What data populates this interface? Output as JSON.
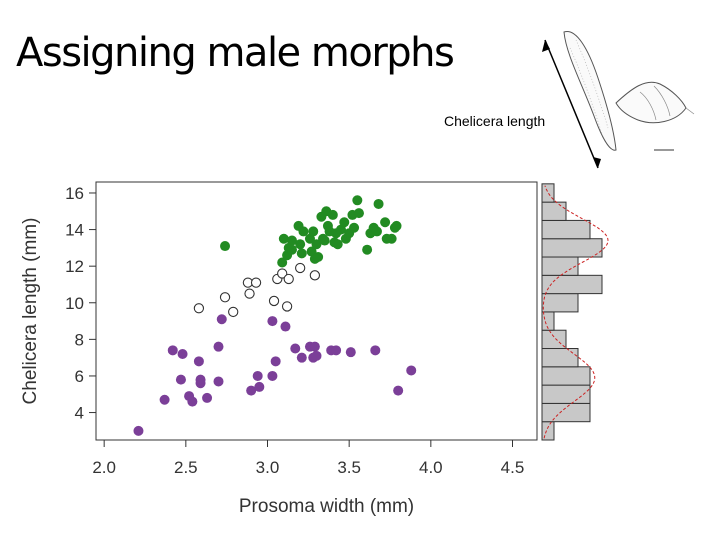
{
  "slide": {
    "title": "Assigning male morphs",
    "illustration_label": "Chelicera length"
  },
  "chart_data": [
    {
      "type": "scatter",
      "xlabel": "Prosoma width (mm)",
      "ylabel": "Chelicera length (mm)",
      "xlim": [
        1.95,
        4.65
      ],
      "ylim": [
        2.5,
        16.6
      ],
      "xticks": [
        "2.0",
        "2.5",
        "3.0",
        "3.5",
        "4.0",
        "4.5"
      ],
      "yticks": [
        "4",
        "6",
        "8",
        "10",
        "12",
        "14",
        "16"
      ],
      "grid": false,
      "colors": {
        "green": "#228B22",
        "purple": "#7B3F98",
        "open": "#333333"
      },
      "series": [
        {
          "style": "filled-green",
          "points": [
            [
              2.74,
              13.1
            ],
            [
              3.09,
              12.2
            ],
            [
              3.1,
              13.5
            ],
            [
              3.12,
              12.6
            ],
            [
              3.13,
              13.0
            ],
            [
              3.15,
              13.4
            ],
            [
              3.15,
              12.9
            ],
            [
              3.19,
              14.2
            ],
            [
              3.2,
              13.2
            ],
            [
              3.21,
              12.7
            ],
            [
              3.22,
              13.9
            ],
            [
              3.26,
              13.5
            ],
            [
              3.27,
              12.8
            ],
            [
              3.28,
              13.9
            ],
            [
              3.29,
              12.4
            ],
            [
              3.3,
              13.2
            ],
            [
              3.31,
              12.5
            ],
            [
              3.33,
              14.7
            ],
            [
              3.34,
              13.5
            ],
            [
              3.35,
              13.4
            ],
            [
              3.36,
              15.0
            ],
            [
              3.37,
              14.2
            ],
            [
              3.38,
              13.9
            ],
            [
              3.4,
              14.8
            ],
            [
              3.41,
              13.3
            ],
            [
              3.42,
              13.8
            ],
            [
              3.43,
              13.2
            ],
            [
              3.45,
              14.0
            ],
            [
              3.47,
              14.4
            ],
            [
              3.48,
              13.5
            ],
            [
              3.5,
              13.8
            ],
            [
              3.52,
              14.8
            ],
            [
              3.53,
              14.1
            ],
            [
              3.55,
              15.6
            ],
            [
              3.56,
              14.9
            ],
            [
              3.61,
              12.9
            ],
            [
              3.63,
              13.8
            ],
            [
              3.65,
              14.1
            ],
            [
              3.67,
              13.9
            ],
            [
              3.68,
              15.4
            ],
            [
              3.72,
              14.4
            ],
            [
              3.73,
              13.5
            ],
            [
              3.76,
              13.5
            ],
            [
              3.78,
              14.1
            ],
            [
              3.79,
              14.2
            ]
          ]
        },
        {
          "style": "open",
          "points": [
            [
              2.58,
              9.7
            ],
            [
              2.74,
              10.3
            ],
            [
              2.79,
              9.5
            ],
            [
              2.88,
              11.1
            ],
            [
              2.89,
              10.5
            ],
            [
              2.93,
              11.1
            ],
            [
              3.04,
              10.1
            ],
            [
              3.06,
              11.3
            ],
            [
              3.09,
              11.6
            ],
            [
              3.12,
              9.8
            ],
            [
              3.13,
              11.3
            ],
            [
              3.2,
              11.9
            ],
            [
              3.29,
              11.5
            ]
          ]
        },
        {
          "style": "filled-purple",
          "points": [
            [
              2.21,
              3.0
            ],
            [
              2.37,
              4.7
            ],
            [
              2.42,
              7.4
            ],
            [
              2.47,
              5.8
            ],
            [
              2.48,
              7.2
            ],
            [
              2.52,
              4.9
            ],
            [
              2.54,
              4.6
            ],
            [
              2.58,
              6.8
            ],
            [
              2.59,
              5.6
            ],
            [
              2.59,
              5.8
            ],
            [
              2.63,
              4.8
            ],
            [
              2.7,
              7.6
            ],
            [
              2.7,
              5.7
            ],
            [
              2.72,
              9.1
            ],
            [
              2.9,
              5.2
            ],
            [
              2.95,
              5.4
            ],
            [
              2.94,
              6.0
            ],
            [
              3.03,
              6.0
            ],
            [
              3.03,
              9.0
            ],
            [
              3.05,
              6.8
            ],
            [
              3.11,
              8.7
            ],
            [
              3.17,
              7.5
            ],
            [
              3.21,
              7.0
            ],
            [
              3.26,
              7.6
            ],
            [
              3.28,
              7.0
            ],
            [
              3.29,
              7.6
            ],
            [
              3.3,
              7.1
            ],
            [
              3.39,
              7.4
            ],
            [
              3.42,
              7.4
            ],
            [
              3.51,
              7.3
            ],
            [
              3.66,
              7.4
            ],
            [
              3.8,
              5.2
            ],
            [
              3.88,
              6.3
            ]
          ]
        }
      ]
    },
    {
      "type": "bar",
      "orientation": "horizontal",
      "shares_y_axis_with": "scatter",
      "bin_width": 1,
      "bins_start": [
        3,
        4,
        5,
        6,
        7,
        8,
        9,
        10,
        11,
        12,
        13,
        14,
        15,
        16
      ],
      "counts": [
        1,
        4,
        4,
        4,
        3,
        2,
        1,
        3,
        5,
        3,
        5,
        4,
        2,
        1
      ],
      "density_line_color": "#cc2222"
    }
  ]
}
